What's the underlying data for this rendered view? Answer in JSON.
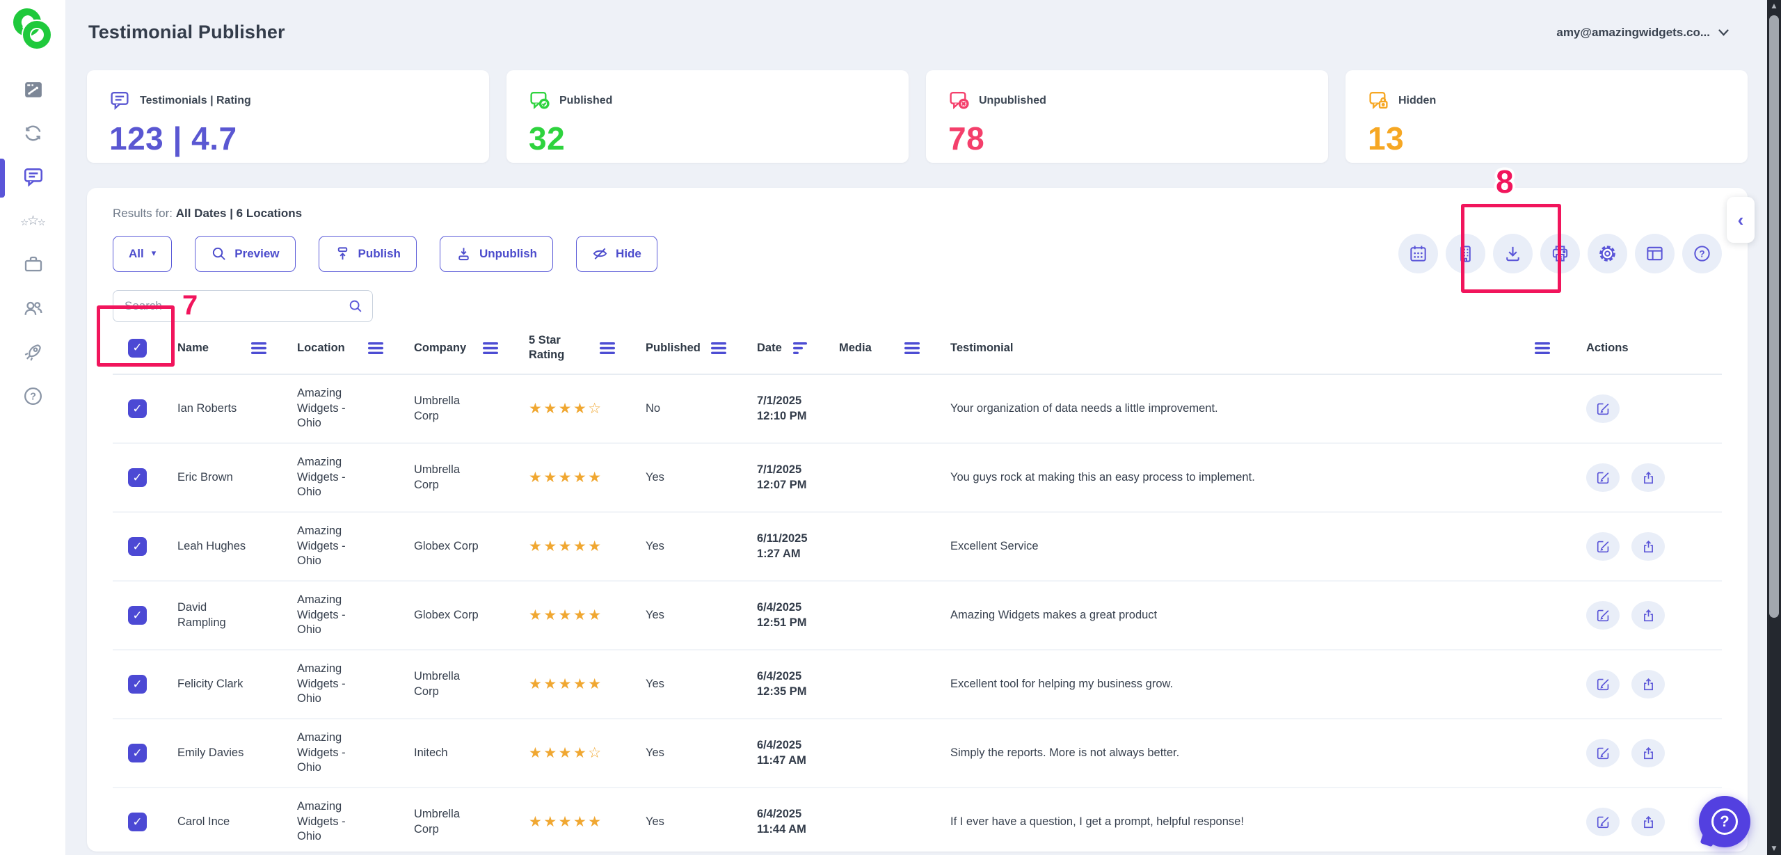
{
  "app": {
    "title": "Testimonial Publisher",
    "account_email": "amy@amazingwidgets.co..."
  },
  "colors": {
    "accent": "#5a55d8",
    "published": "#2ed33e",
    "unpublished": "#f43f6b",
    "hidden": "#f6a723",
    "stars": "#f0a731",
    "annotation": "#f1155c",
    "logo": "#1fc93c"
  },
  "sidebar": {
    "items": [
      {
        "icon": "dashboard-icon"
      },
      {
        "icon": "sync-icon"
      },
      {
        "icon": "testimonials-chat-icon",
        "active": true
      },
      {
        "icon": "review-stars-icon"
      },
      {
        "icon": "briefcase-icon"
      },
      {
        "icon": "users-icon"
      },
      {
        "icon": "rocket-icon"
      },
      {
        "icon": "help-icon"
      }
    ]
  },
  "stats": [
    {
      "label": "Testimonials | Rating",
      "value": "123 | 4.7",
      "color": "#5a57d2",
      "icon": "testimonial-bubble-icon"
    },
    {
      "label": "Published",
      "value": "32",
      "color": "#2ed33e",
      "icon": "published-bubble-icon"
    },
    {
      "label": "Unpublished",
      "value": "78",
      "color": "#f43f6b",
      "icon": "unpublished-bubble-icon"
    },
    {
      "label": "Hidden",
      "value": "13",
      "color": "#f6a723",
      "icon": "hidden-bubble-icon"
    }
  ],
  "results": {
    "prefix": "Results for:",
    "value": "All Dates | 6 Locations"
  },
  "filter_buttons": {
    "all": "All",
    "preview": "Preview",
    "publish": "Publish",
    "unpublish": "Unpublish",
    "hide": "Hide"
  },
  "toolbar": {
    "icons": [
      "calendar-icon",
      "building-icon",
      "download-icon",
      "printer-icon",
      "settings-gear-icon",
      "layout-columns-icon",
      "help-circle-icon"
    ]
  },
  "search": {
    "placeholder": "Search"
  },
  "annotations": {
    "step7": "7",
    "step8": "8"
  },
  "collapse_tab": {
    "chevron": "‹"
  },
  "help_widget": {
    "label": "?"
  },
  "table": {
    "select_all_checked": true,
    "headers": [
      {
        "label": "",
        "type": "checkbox"
      },
      {
        "label": "Name",
        "menu": "hamburger"
      },
      {
        "label": "Location",
        "menu": "hamburger"
      },
      {
        "label": "Company",
        "menu": "hamburger"
      },
      {
        "label": "5 Star Rating",
        "menu": "hamburger",
        "narrow": true
      },
      {
        "label": "Published",
        "menu": "hamburger"
      },
      {
        "label": "Date",
        "menu": "sort"
      },
      {
        "label": "Media",
        "menu": "hamburger"
      },
      {
        "label": "Testimonial"
      },
      {
        "label": "",
        "menu": "hamburger"
      },
      {
        "label": "Actions"
      }
    ],
    "rows": [
      {
        "checked": true,
        "name": "Ian Roberts",
        "location": "Amazing Widgets - Ohio",
        "company": "Umbrella Corp",
        "rating": 4,
        "published": "No",
        "date": "7/1/2025",
        "time": "12:10 PM",
        "testimonial": "Your organization of data needs a little improvement.",
        "actions": [
          "edit"
        ]
      },
      {
        "checked": true,
        "name": "Eric Brown",
        "location": "Amazing Widgets - Ohio",
        "company": "Umbrella Corp",
        "rating": 5,
        "published": "Yes",
        "date": "7/1/2025",
        "time": "12:07 PM",
        "testimonial": "You guys rock at making this an easy process to implement.",
        "actions": [
          "edit",
          "share"
        ]
      },
      {
        "checked": true,
        "name": "Leah Hughes",
        "location": "Amazing Widgets - Ohio",
        "company": "Globex Corp",
        "rating": 5,
        "published": "Yes",
        "date": "6/11/2025",
        "time": "1:27 AM",
        "testimonial": "Excellent Service",
        "actions": [
          "edit",
          "share"
        ]
      },
      {
        "checked": true,
        "name": "David Rampling",
        "location": "Amazing Widgets - Ohio",
        "company": "Globex Corp",
        "rating": 5,
        "published": "Yes",
        "date": "6/4/2025",
        "time": "12:51 PM",
        "testimonial": "Amazing Widgets makes a great product",
        "actions": [
          "edit",
          "share"
        ]
      },
      {
        "checked": true,
        "name": "Felicity Clark",
        "location": "Amazing Widgets - Ohio",
        "company": "Umbrella Corp",
        "rating": 5,
        "published": "Yes",
        "date": "6/4/2025",
        "time": "12:35 PM",
        "testimonial": "Excellent tool for helping my business grow.",
        "actions": [
          "edit",
          "share"
        ]
      },
      {
        "checked": true,
        "name": "Emily Davies",
        "location": "Amazing Widgets - Ohio",
        "company": "Initech",
        "rating": 4,
        "published": "Yes",
        "date": "6/4/2025",
        "time": "11:47 AM",
        "testimonial": "Simply the reports. More is not always better.",
        "actions": [
          "edit",
          "share"
        ]
      },
      {
        "checked": true,
        "name": "Carol Ince",
        "location": "Amazing Widgets - Ohio",
        "company": "Umbrella Corp",
        "rating": 5,
        "published": "Yes",
        "date": "6/4/2025",
        "time": "11:44 AM",
        "testimonial": "If I ever have a question, I get a prompt, helpful response!",
        "actions": [
          "edit",
          "share"
        ]
      }
    ]
  }
}
